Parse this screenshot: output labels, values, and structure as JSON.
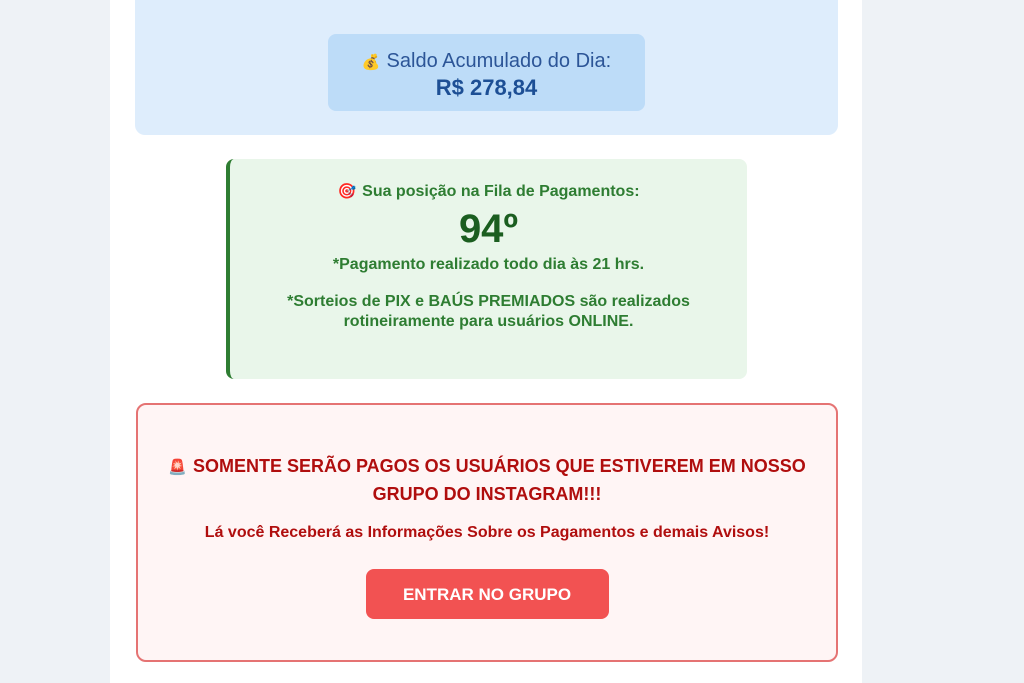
{
  "balance": {
    "icon": "money-bag-icon",
    "label": "Saldo Acumulado do Dia:",
    "value": "R$ 278,84"
  },
  "queue": {
    "icon": "target-icon",
    "title": "Sua posição na Fila de Pagamentos:",
    "position": "94º",
    "payment_note": "*Pagamento realizado todo dia às 21 hrs.",
    "raffle_note": "*Sorteios de PIX e BAÚS PREMIADOS são realizados rotineiramente para usuários ONLINE."
  },
  "alert": {
    "icon": "siren-icon",
    "heading": "SOMENTE SERÃO PAGOS OS USUÁRIOS QUE ESTIVEREM EM NOSSO GRUPO DO INSTAGRAM!!!",
    "info": "Lá você Receberá as Informações Sobre os Pagamentos e demais Avisos!",
    "button_label": "ENTRAR NO GRUPO"
  },
  "colors": {
    "accent_blue": "#1d4f95",
    "accent_green": "#2e7d32",
    "accent_red": "#f25252"
  }
}
